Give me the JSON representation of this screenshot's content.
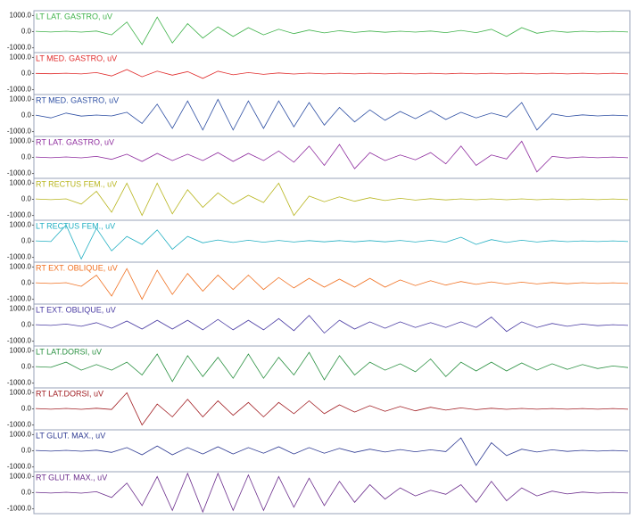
{
  "chart_data": [
    {
      "type": "line",
      "title": "LT LAT. GASTRO, uV",
      "color": "#3fb24a",
      "ylim": [
        -1300,
        1300
      ],
      "yticks": [
        {
          "value": 1000,
          "label": "1000.0"
        },
        {
          "value": 0,
          "label": "0.0"
        },
        {
          "value": -1000,
          "label": "-1000.0"
        }
      ],
      "values": [
        20,
        -20,
        30,
        -30,
        40,
        -200,
        600,
        -800,
        900,
        -700,
        500,
        -400,
        300,
        -300,
        250,
        -200,
        150,
        -120,
        100,
        -80,
        60,
        -50,
        40,
        -40,
        30,
        -30,
        40,
        -60,
        80,
        -60,
        150,
        -300,
        250,
        -100,
        50,
        -40,
        30,
        -20,
        20,
        -20
      ]
    },
    {
      "type": "line",
      "title": "LT MED. GASTRO, uV",
      "color": "#e02a2a",
      "ylim": [
        -1300,
        1300
      ],
      "yticks": [
        {
          "value": 1000,
          "label": "1000.0"
        },
        {
          "value": 0,
          "label": "0.0"
        },
        {
          "value": -1000,
          "label": "-1000.0"
        }
      ],
      "values": [
        10,
        -10,
        20,
        -20,
        60,
        -150,
        250,
        -200,
        150,
        -100,
        120,
        -300,
        150,
        -80,
        60,
        -50,
        40,
        -30,
        30,
        -20,
        20,
        -20,
        20,
        -20,
        20,
        -20,
        20,
        -20,
        20,
        -20,
        20,
        -20,
        20,
        -20,
        20,
        -20,
        20,
        -20,
        20,
        -20
      ]
    },
    {
      "type": "line",
      "title": "RT MED. GASTRO, uV",
      "color": "#2e4fa3",
      "ylim": [
        -1300,
        1300
      ],
      "yticks": [
        {
          "value": 1000,
          "label": "1000.0"
        },
        {
          "value": 0,
          "label": "0.0"
        },
        {
          "value": -1000,
          "label": "-1000.0"
        }
      ],
      "values": [
        20,
        -150,
        150,
        -40,
        30,
        -30,
        200,
        -500,
        700,
        -800,
        900,
        -900,
        1000,
        -900,
        900,
        -800,
        900,
        -700,
        800,
        -600,
        500,
        -400,
        350,
        -300,
        250,
        -200,
        300,
        -250,
        200,
        -150,
        150,
        -100,
        800,
        -900,
        100,
        -60,
        40,
        -30,
        20,
        -20
      ]
    },
    {
      "type": "line",
      "title": "RT LAT. GASTRO, uV",
      "color": "#8e2c9e",
      "ylim": [
        -1300,
        1300
      ],
      "yticks": [
        {
          "value": 1000,
          "label": "1000.0"
        },
        {
          "value": 0,
          "label": "0.0"
        },
        {
          "value": -1000,
          "label": "-1000.0"
        }
      ],
      "values": [
        20,
        -20,
        30,
        -30,
        60,
        -120,
        200,
        -250,
        250,
        -200,
        200,
        -200,
        300,
        -250,
        250,
        -200,
        400,
        -300,
        700,
        -500,
        800,
        -700,
        300,
        -200,
        150,
        -150,
        300,
        -400,
        700,
        -500,
        150,
        -100,
        1000,
        -900,
        60,
        -40,
        30,
        -20,
        20,
        -20
      ]
    },
    {
      "type": "line",
      "title": "RT RECTUS FEM., uV",
      "color": "#b9b621",
      "ylim": [
        -1300,
        1300
      ],
      "yticks": [
        {
          "value": 1000,
          "label": "1000.0"
        },
        {
          "value": 0,
          "label": "0.0"
        },
        {
          "value": -1000,
          "label": "-1000.0"
        }
      ],
      "values": [
        20,
        -20,
        30,
        -300,
        500,
        -800,
        1000,
        -1000,
        1000,
        -900,
        600,
        -500,
        400,
        -300,
        250,
        -200,
        1000,
        -1000,
        200,
        -150,
        150,
        -120,
        100,
        -80,
        60,
        -50,
        40,
        -40,
        30,
        -30,
        30,
        -30,
        30,
        -30,
        20,
        -20,
        20,
        -20,
        20,
        -20
      ]
    },
    {
      "type": "line",
      "title": "LT RECTUS FEM., uV",
      "color": "#22afc2",
      "ylim": [
        -1300,
        1300
      ],
      "yticks": [
        {
          "value": 1000,
          "label": "1000.0"
        },
        {
          "value": 0,
          "label": "0.0"
        },
        {
          "value": -1000,
          "label": "-1000.0"
        }
      ],
      "values": [
        20,
        -20,
        1000,
        -1100,
        800,
        -600,
        300,
        -200,
        700,
        -500,
        300,
        -100,
        80,
        -80,
        60,
        -60,
        50,
        -50,
        40,
        -40,
        40,
        -40,
        40,
        -40,
        50,
        -50,
        60,
        -60,
        250,
        -200,
        100,
        -80,
        60,
        -50,
        40,
        -30,
        20,
        -20,
        20,
        -20
      ]
    },
    {
      "type": "line",
      "title": "RT EXT. OBLIQUE, uV",
      "color": "#f07122",
      "ylim": [
        -1300,
        1300
      ],
      "yticks": [
        {
          "value": 1000,
          "label": "1000.0"
        },
        {
          "value": 0,
          "label": "0.0"
        },
        {
          "value": -1000,
          "label": "-1000.0"
        }
      ],
      "values": [
        20,
        -20,
        30,
        -200,
        500,
        -800,
        900,
        -1000,
        800,
        -700,
        600,
        -500,
        500,
        -400,
        500,
        -400,
        350,
        -300,
        300,
        -250,
        250,
        -250,
        300,
        -250,
        200,
        -150,
        150,
        -120,
        100,
        -80,
        80,
        -60,
        60,
        -50,
        40,
        -40,
        30,
        -20,
        20,
        -20
      ]
    },
    {
      "type": "line",
      "title": "LT EXT. OBLIQUE, uV",
      "color": "#4a3ca3",
      "ylim": [
        -1300,
        1300
      ],
      "yticks": [
        {
          "value": 1000,
          "label": "1000.0"
        },
        {
          "value": 0,
          "label": "0.0"
        },
        {
          "value": -1000,
          "label": "-1000.0"
        }
      ],
      "values": [
        20,
        -20,
        60,
        -80,
        150,
        -200,
        250,
        -250,
        300,
        -250,
        300,
        -300,
        350,
        -300,
        300,
        -300,
        400,
        -350,
        600,
        -500,
        300,
        -250,
        200,
        -200,
        200,
        -150,
        150,
        -150,
        200,
        -150,
        500,
        -400,
        200,
        -150,
        100,
        -80,
        60,
        -40,
        20,
        -20
      ]
    },
    {
      "type": "line",
      "title": "LT LAT.DORSI, uV",
      "color": "#2b9142",
      "ylim": [
        -1300,
        1300
      ],
      "yticks": [
        {
          "value": 1000,
          "label": "1000.0"
        },
        {
          "value": 0,
          "label": "0.0"
        },
        {
          "value": -1000,
          "label": "-1000.0"
        }
      ],
      "values": [
        20,
        -20,
        300,
        -200,
        150,
        -200,
        300,
        -500,
        800,
        -900,
        700,
        -600,
        600,
        -700,
        800,
        -700,
        600,
        -500,
        900,
        -800,
        700,
        -500,
        300,
        -200,
        200,
        -300,
        500,
        -600,
        300,
        -250,
        300,
        -250,
        250,
        -200,
        200,
        -150,
        150,
        -100,
        60,
        -40
      ]
    },
    {
      "type": "line",
      "title": "RT LAT.DORSI, uV",
      "color": "#a21f24",
      "ylim": [
        -1300,
        1300
      ],
      "yticks": [
        {
          "value": 1000,
          "label": "1000.0"
        },
        {
          "value": 0,
          "label": "0.0"
        },
        {
          "value": -1000,
          "label": "-1000.0"
        }
      ],
      "values": [
        20,
        -20,
        30,
        -30,
        40,
        -40,
        1000,
        -1000,
        300,
        -500,
        600,
        -500,
        500,
        -400,
        400,
        -500,
        400,
        -300,
        500,
        -300,
        250,
        -200,
        200,
        -150,
        150,
        -120,
        100,
        -80,
        60,
        -50,
        40,
        -30,
        30,
        -20,
        20,
        -20,
        20,
        -20,
        20,
        -20
      ]
    },
    {
      "type": "line",
      "title": "LT GLUT. MAX., uV",
      "color": "#2f3b93",
      "ylim": [
        -1300,
        1300
      ],
      "yticks": [
        {
          "value": 1000,
          "label": "1000.0"
        },
        {
          "value": 0,
          "label": "0.0"
        },
        {
          "value": -1000,
          "label": "-1000.0"
        }
      ],
      "values": [
        20,
        -20,
        30,
        -30,
        40,
        -100,
        200,
        -250,
        300,
        -250,
        200,
        -200,
        250,
        -200,
        200,
        -150,
        250,
        -200,
        200,
        -150,
        150,
        -100,
        100,
        -80,
        80,
        -60,
        60,
        -50,
        800,
        -900,
        500,
        -300,
        100,
        -80,
        60,
        -40,
        30,
        -20,
        20,
        -20
      ]
    },
    {
      "type": "line",
      "title": "RT GLUT. MAX., uV",
      "color": "#6b2d8c",
      "ylim": [
        -1300,
        1300
      ],
      "yticks": [
        {
          "value": 1000,
          "label": "1000.0"
        },
        {
          "value": 0,
          "label": "0.0"
        },
        {
          "value": -1000,
          "label": "-1000.0"
        }
      ],
      "values": [
        20,
        -20,
        30,
        -30,
        60,
        -300,
        600,
        -800,
        1000,
        -1100,
        1200,
        -1200,
        1200,
        -1100,
        1100,
        -1100,
        1000,
        -900,
        900,
        -800,
        700,
        -600,
        500,
        -400,
        300,
        -200,
        150,
        -100,
        500,
        -600,
        700,
        -500,
        300,
        -200,
        100,
        -80,
        40,
        -30,
        20,
        -20
      ]
    }
  ]
}
